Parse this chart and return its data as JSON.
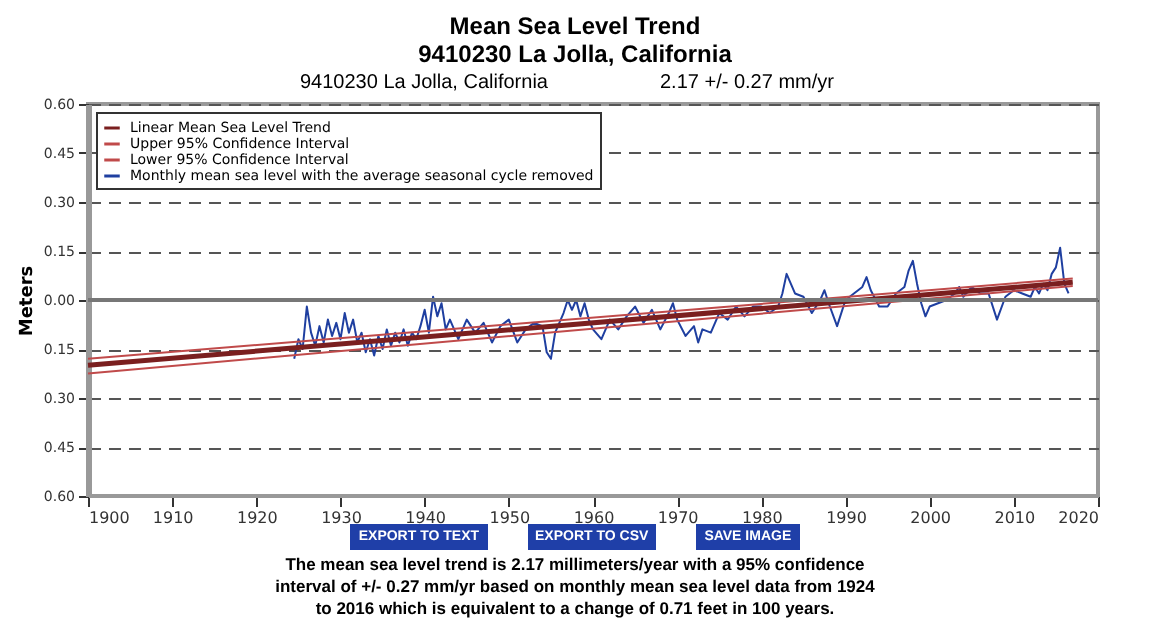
{
  "chart_data": {
    "type": "line",
    "title": "Mean Sea Level Trend",
    "subtitle": "9410230 La Jolla, California",
    "ylabel": "Meters",
    "annotations": [
      "9410230 La Jolla, California",
      "2.17 +/-  0.27 mm/yr",
      "EXPORT TO TEXT",
      "EXPORT TO CSV",
      "SAVE IMAGE",
      "The mean sea level trend is 2.17 millimeters/year with a 95% confidence interval of +/- 0.27 mm/yr based on monthly mean sea level data from 1924 to 2016 which is equivalent to a change of 0.71 feet in 100 years."
    ],
    "xlim": [
      1900,
      2020
    ],
    "xticks": [
      1900,
      1910,
      1920,
      1930,
      1940,
      1950,
      1960,
      1970,
      1980,
      1990,
      2000,
      2010,
      2020
    ],
    "ylim": [
      -0.6,
      0.6
    ],
    "yticks": [
      {
        "value": -0.6,
        "label": "0.60"
      },
      {
        "value": -0.45,
        "label": "0.45"
      },
      {
        "value": -0.3,
        "label": "0.30"
      },
      {
        "value": -0.15,
        "label": "0.15"
      },
      {
        "value": 0,
        "label": "0.00"
      },
      {
        "value": 0.15,
        "label": "0.15"
      },
      {
        "value": 0.3,
        "label": "0.30"
      },
      {
        "value": 0.45,
        "label": "0.45"
      },
      {
        "value": 0.6,
        "label": "0.60"
      }
    ],
    "grid": "y",
    "legend": "top left",
    "ref_lines": [
      {
        "axis": "y",
        "value": 0,
        "color": "#777777"
      }
    ],
    "series": [
      {
        "name": "Linear Mean Sea Level Trend",
        "color": "#7a1f1f",
        "x": [
          1900,
          2017
        ],
        "values": [
          -0.2,
          0.054
        ]
      },
      {
        "name": "Upper 95% Confidence Interval",
        "color": "#c04a4a",
        "x": [
          1900,
          2017
        ],
        "values": [
          -0.18,
          0.066
        ]
      },
      {
        "name": "Lower 95% Confidence Interval",
        "color": "#c04a4a",
        "x": [
          1900,
          2017
        ],
        "values": [
          -0.225,
          0.043
        ]
      },
      {
        "name": "Monthly mean sea level with the average seasonal cycle removed",
        "color": "#1f3fa0",
        "x": [
          1924.5,
          1925,
          1925.5,
          1926,
          1926.5,
          1927,
          1927.5,
          1928,
          1928.5,
          1929,
          1929.5,
          1930,
          1930.5,
          1931,
          1931.5,
          1932,
          1932.5,
          1933,
          1933.5,
          1934,
          1934.5,
          1935,
          1935.5,
          1936,
          1936.5,
          1937,
          1937.5,
          1938,
          1938.5,
          1939,
          1939.5,
          1940,
          1940.5,
          1941,
          1941.5,
          1942,
          1942.5,
          1943,
          1944,
          1945,
          1946,
          1947,
          1948,
          1949,
          1950,
          1951,
          1952,
          1953,
          1954,
          1954.5,
          1955,
          1955.5,
          1956,
          1956.5,
          1957,
          1957.5,
          1958,
          1958.5,
          1959,
          1959.5,
          1960,
          1961,
          1962,
          1963,
          1964,
          1965,
          1966,
          1967,
          1968,
          1969,
          1969.5,
          1970,
          1971,
          1972,
          1972.5,
          1973,
          1974,
          1975,
          1976,
          1977,
          1978,
          1979,
          1980,
          1981,
          1982,
          1982.5,
          1983,
          1983.5,
          1984,
          1985,
          1986,
          1987,
          1987.5,
          1988,
          1989,
          1990,
          1991,
          1992,
          1992.5,
          1993,
          1994,
          1995,
          1996,
          1997,
          1997.5,
          1998,
          1998.5,
          1999,
          1999.5,
          2000,
          2001,
          2002,
          2003,
          2003.5,
          2004,
          2005,
          2006,
          2007,
          2008,
          2009,
          2010,
          2011,
          2012,
          2012.5,
          2013,
          2013.5,
          2014,
          2014.5,
          2015,
          2015.5,
          2016,
          2016.5
        ],
        "values": [
          -0.18,
          -0.12,
          -0.15,
          -0.02,
          -0.1,
          -0.14,
          -0.08,
          -0.13,
          -0.06,
          -0.11,
          -0.07,
          -0.12,
          -0.04,
          -0.1,
          -0.06,
          -0.13,
          -0.1,
          -0.16,
          -0.12,
          -0.17,
          -0.11,
          -0.15,
          -0.09,
          -0.14,
          -0.1,
          -0.13,
          -0.09,
          -0.14,
          -0.1,
          -0.12,
          -0.08,
          -0.03,
          -0.1,
          0.01,
          -0.05,
          -0.01,
          -0.09,
          -0.06,
          -0.12,
          -0.06,
          -0.1,
          -0.07,
          -0.13,
          -0.08,
          -0.06,
          -0.13,
          -0.09,
          -0.07,
          -0.08,
          -0.16,
          -0.18,
          -0.1,
          -0.07,
          -0.04,
          0,
          -0.03,
          0,
          -0.05,
          -0.01,
          -0.06,
          -0.09,
          -0.12,
          -0.06,
          -0.09,
          -0.05,
          -0.02,
          -0.07,
          -0.03,
          -0.09,
          -0.04,
          -0.01,
          -0.06,
          -0.11,
          -0.08,
          -0.13,
          -0.09,
          -0.1,
          -0.04,
          -0.06,
          -0.02,
          -0.05,
          -0.02,
          -0.02,
          -0.04,
          -0.02,
          0.02,
          0.08,
          0.05,
          0.02,
          0.01,
          -0.04,
          0,
          0.03,
          -0.01,
          -0.08,
          0,
          0.02,
          0.04,
          0.07,
          0.03,
          -0.02,
          -0.02,
          0.02,
          0.04,
          0.09,
          0.12,
          0.05,
          -0.01,
          -0.05,
          -0.02,
          -0.01,
          0,
          0.02,
          0.04,
          0.01,
          0.04,
          0.02,
          0.02,
          -0.06,
          0.01,
          0.03,
          0.02,
          0.01,
          0.04,
          0.02,
          0.05,
          0.03,
          0.08,
          0.1,
          0.16,
          0.05,
          0.02
        ]
      }
    ]
  }
}
